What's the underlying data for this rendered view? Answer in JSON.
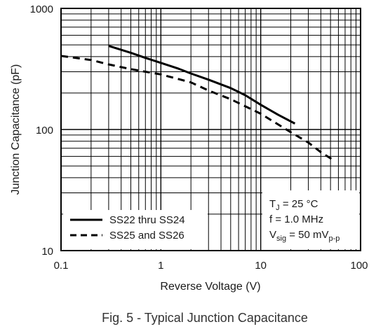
{
  "caption": "Fig. 5 - Typical Junction Capacitance",
  "chart_data": {
    "type": "line",
    "xlabel": "Reverse Voltage (V)",
    "ylabel": "Junction Capacitance (pF)",
    "xscale": "log",
    "yscale": "log",
    "xlim": [
      0.1,
      100
    ],
    "ylim": [
      10,
      1000
    ],
    "x_tick_labels": [
      "0.1",
      "1",
      "10",
      "100"
    ],
    "y_tick_labels": [
      "10",
      "100",
      "1000"
    ],
    "grid": true,
    "legend_position": "bottom-left",
    "conditions": {
      "tj": {
        "main": "T",
        "sub": "J",
        "rest": " = 25 °C"
      },
      "freq": "f = 1.0 MHz",
      "vsig": {
        "main": "V",
        "sub": "sig",
        "mid": " = 50 mV",
        "sub2": "p-p"
      }
    },
    "series": [
      {
        "name": "SS22 thru SS24",
        "style": "solid",
        "color": "#000000",
        "points": [
          [
            0.3,
            490
          ],
          [
            0.5,
            430
          ],
          [
            0.7,
            390
          ],
          [
            1.0,
            355
          ],
          [
            1.5,
            318
          ],
          [
            2.0,
            290
          ],
          [
            3.0,
            258
          ],
          [
            5.0,
            220
          ],
          [
            7.0,
            192
          ],
          [
            10.0,
            160
          ],
          [
            15.0,
            132
          ],
          [
            22.0,
            112
          ]
        ]
      },
      {
        "name": "SS25 and SS26",
        "style": "dashed",
        "color": "#000000",
        "points": [
          [
            0.1,
            405
          ],
          [
            0.2,
            375
          ],
          [
            0.3,
            345
          ],
          [
            0.5,
            315
          ],
          [
            1.0,
            285
          ],
          [
            2.0,
            245
          ],
          [
            3.0,
            210
          ],
          [
            5.0,
            178
          ],
          [
            10.0,
            135
          ],
          [
            20.0,
            95
          ],
          [
            30.0,
            78
          ],
          [
            40.0,
            65
          ],
          [
            55.0,
            55
          ]
        ]
      }
    ]
  }
}
